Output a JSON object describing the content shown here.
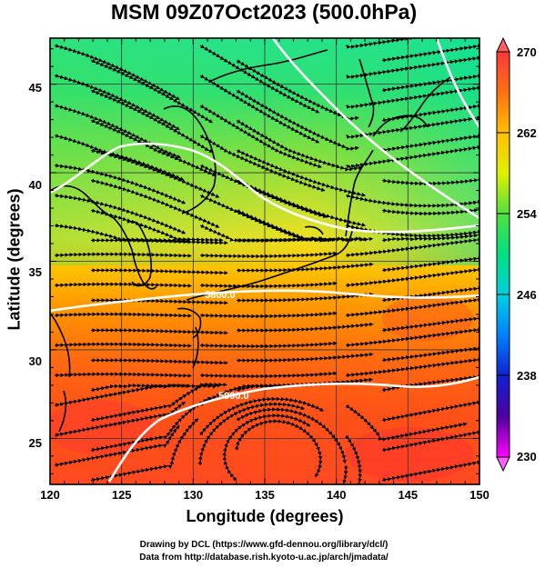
{
  "title": "MSM 09Z07Oct2023 (500.0hPa)",
  "xlabel": "Longitude (degrees)",
  "ylabel": "Latitude  (degrees)",
  "credit_line1": "Drawing by DCL (https://www.gfd-dennou.org/library/dcl/)",
  "credit_line2": "Data from http://database.rish.kyoto-u.ac.jp/arch/jmadata/",
  "map": {
    "lon_range": [
      120,
      150
    ],
    "lat_range": [
      22.4,
      47.6
    ],
    "x_ticks": [
      "120",
      "125",
      "130",
      "135",
      "140",
      "145",
      "150"
    ],
    "y_ticks": [
      "25",
      "30",
      "35",
      "40",
      "45"
    ],
    "gridlines": true,
    "field": "temperature (shaded) with streamlines and height contours",
    "contour_labels": [
      {
        "text": "5800.0",
        "lon": 135,
        "lat": 33.7
      },
      {
        "text": "5900.0",
        "lon": 136,
        "lat": 28.4
      }
    ],
    "colorbar": {
      "ticks": [
        "270",
        "262",
        "254",
        "246",
        "238",
        "230"
      ],
      "range": [
        230,
        270
      ],
      "colors": [
        "#ff4040",
        "#ff8000",
        "#ffd000",
        "#80e040",
        "#00e080",
        "#00d8d0",
        "#0090ff",
        "#1030d0",
        "#4000a0",
        "#ff00ff"
      ]
    }
  }
}
